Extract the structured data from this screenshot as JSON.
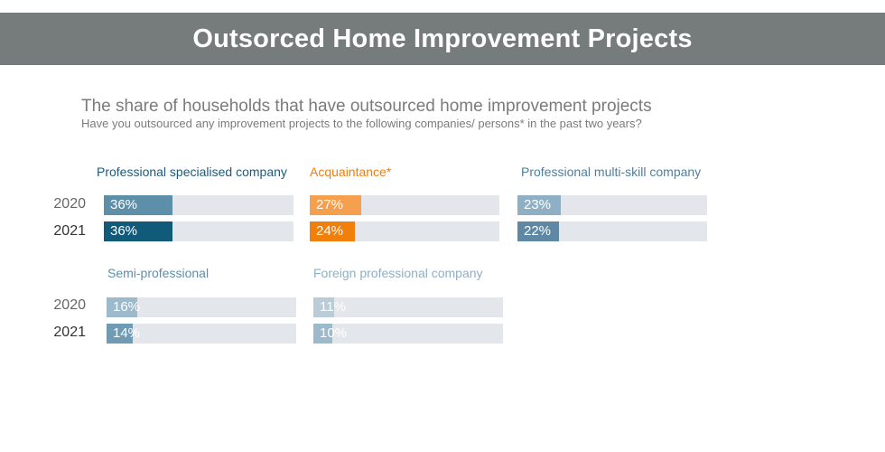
{
  "header": {
    "title": "Outsorced Home Improvement Projects"
  },
  "subtitle": "The share of households that have outsourced home improvement projects",
  "question": "Have you outsourced any improvement projects to the following companies/ persons* in the past two years?",
  "chart_data": [
    {
      "type": "bar",
      "title": "Professional specialised company",
      "categories": [
        "2020",
        "2021"
      ],
      "values": [
        36,
        36
      ],
      "labels": [
        "36%",
        "36%"
      ],
      "colors": [
        "#5e8fa8",
        "#115a7a"
      ],
      "title_color": "#1e5a7a",
      "xlim": [
        0,
        100
      ]
    },
    {
      "type": "bar",
      "title": "Acquaintance*",
      "categories": [
        "2020",
        "2021"
      ],
      "values": [
        27,
        24
      ],
      "labels": [
        "27%",
        "24%"
      ],
      "colors": [
        "#f4a04e",
        "#f07f0c"
      ],
      "title_color": "#f07f0c",
      "xlim": [
        0,
        100
      ]
    },
    {
      "type": "bar",
      "title": "Professional multi-skill company",
      "categories": [
        "2020",
        "2021"
      ],
      "values": [
        23,
        22
      ],
      "labels": [
        "23%",
        "22%"
      ],
      "colors": [
        "#8fb0c4",
        "#5e88a3"
      ],
      "title_color": "#4f7f9b",
      "xlim": [
        0,
        100
      ]
    },
    {
      "type": "bar",
      "title": "Semi-professional",
      "categories": [
        "2020",
        "2021"
      ],
      "values": [
        16,
        14
      ],
      "labels": [
        "16%",
        "14%"
      ],
      "colors": [
        "#9cbacb",
        "#6f9bb5"
      ],
      "title_color": "#5e8fa8",
      "xlim": [
        0,
        100
      ]
    },
    {
      "type": "bar",
      "title": "Foreign professional company",
      "categories": [
        "2020",
        "2021"
      ],
      "values": [
        11,
        10
      ],
      "labels": [
        "11%",
        "10%"
      ],
      "colors": [
        "#b9ccd8",
        "#9cbacb"
      ],
      "title_color": "#8fb0c4",
      "xlim": [
        0,
        100
      ]
    }
  ]
}
